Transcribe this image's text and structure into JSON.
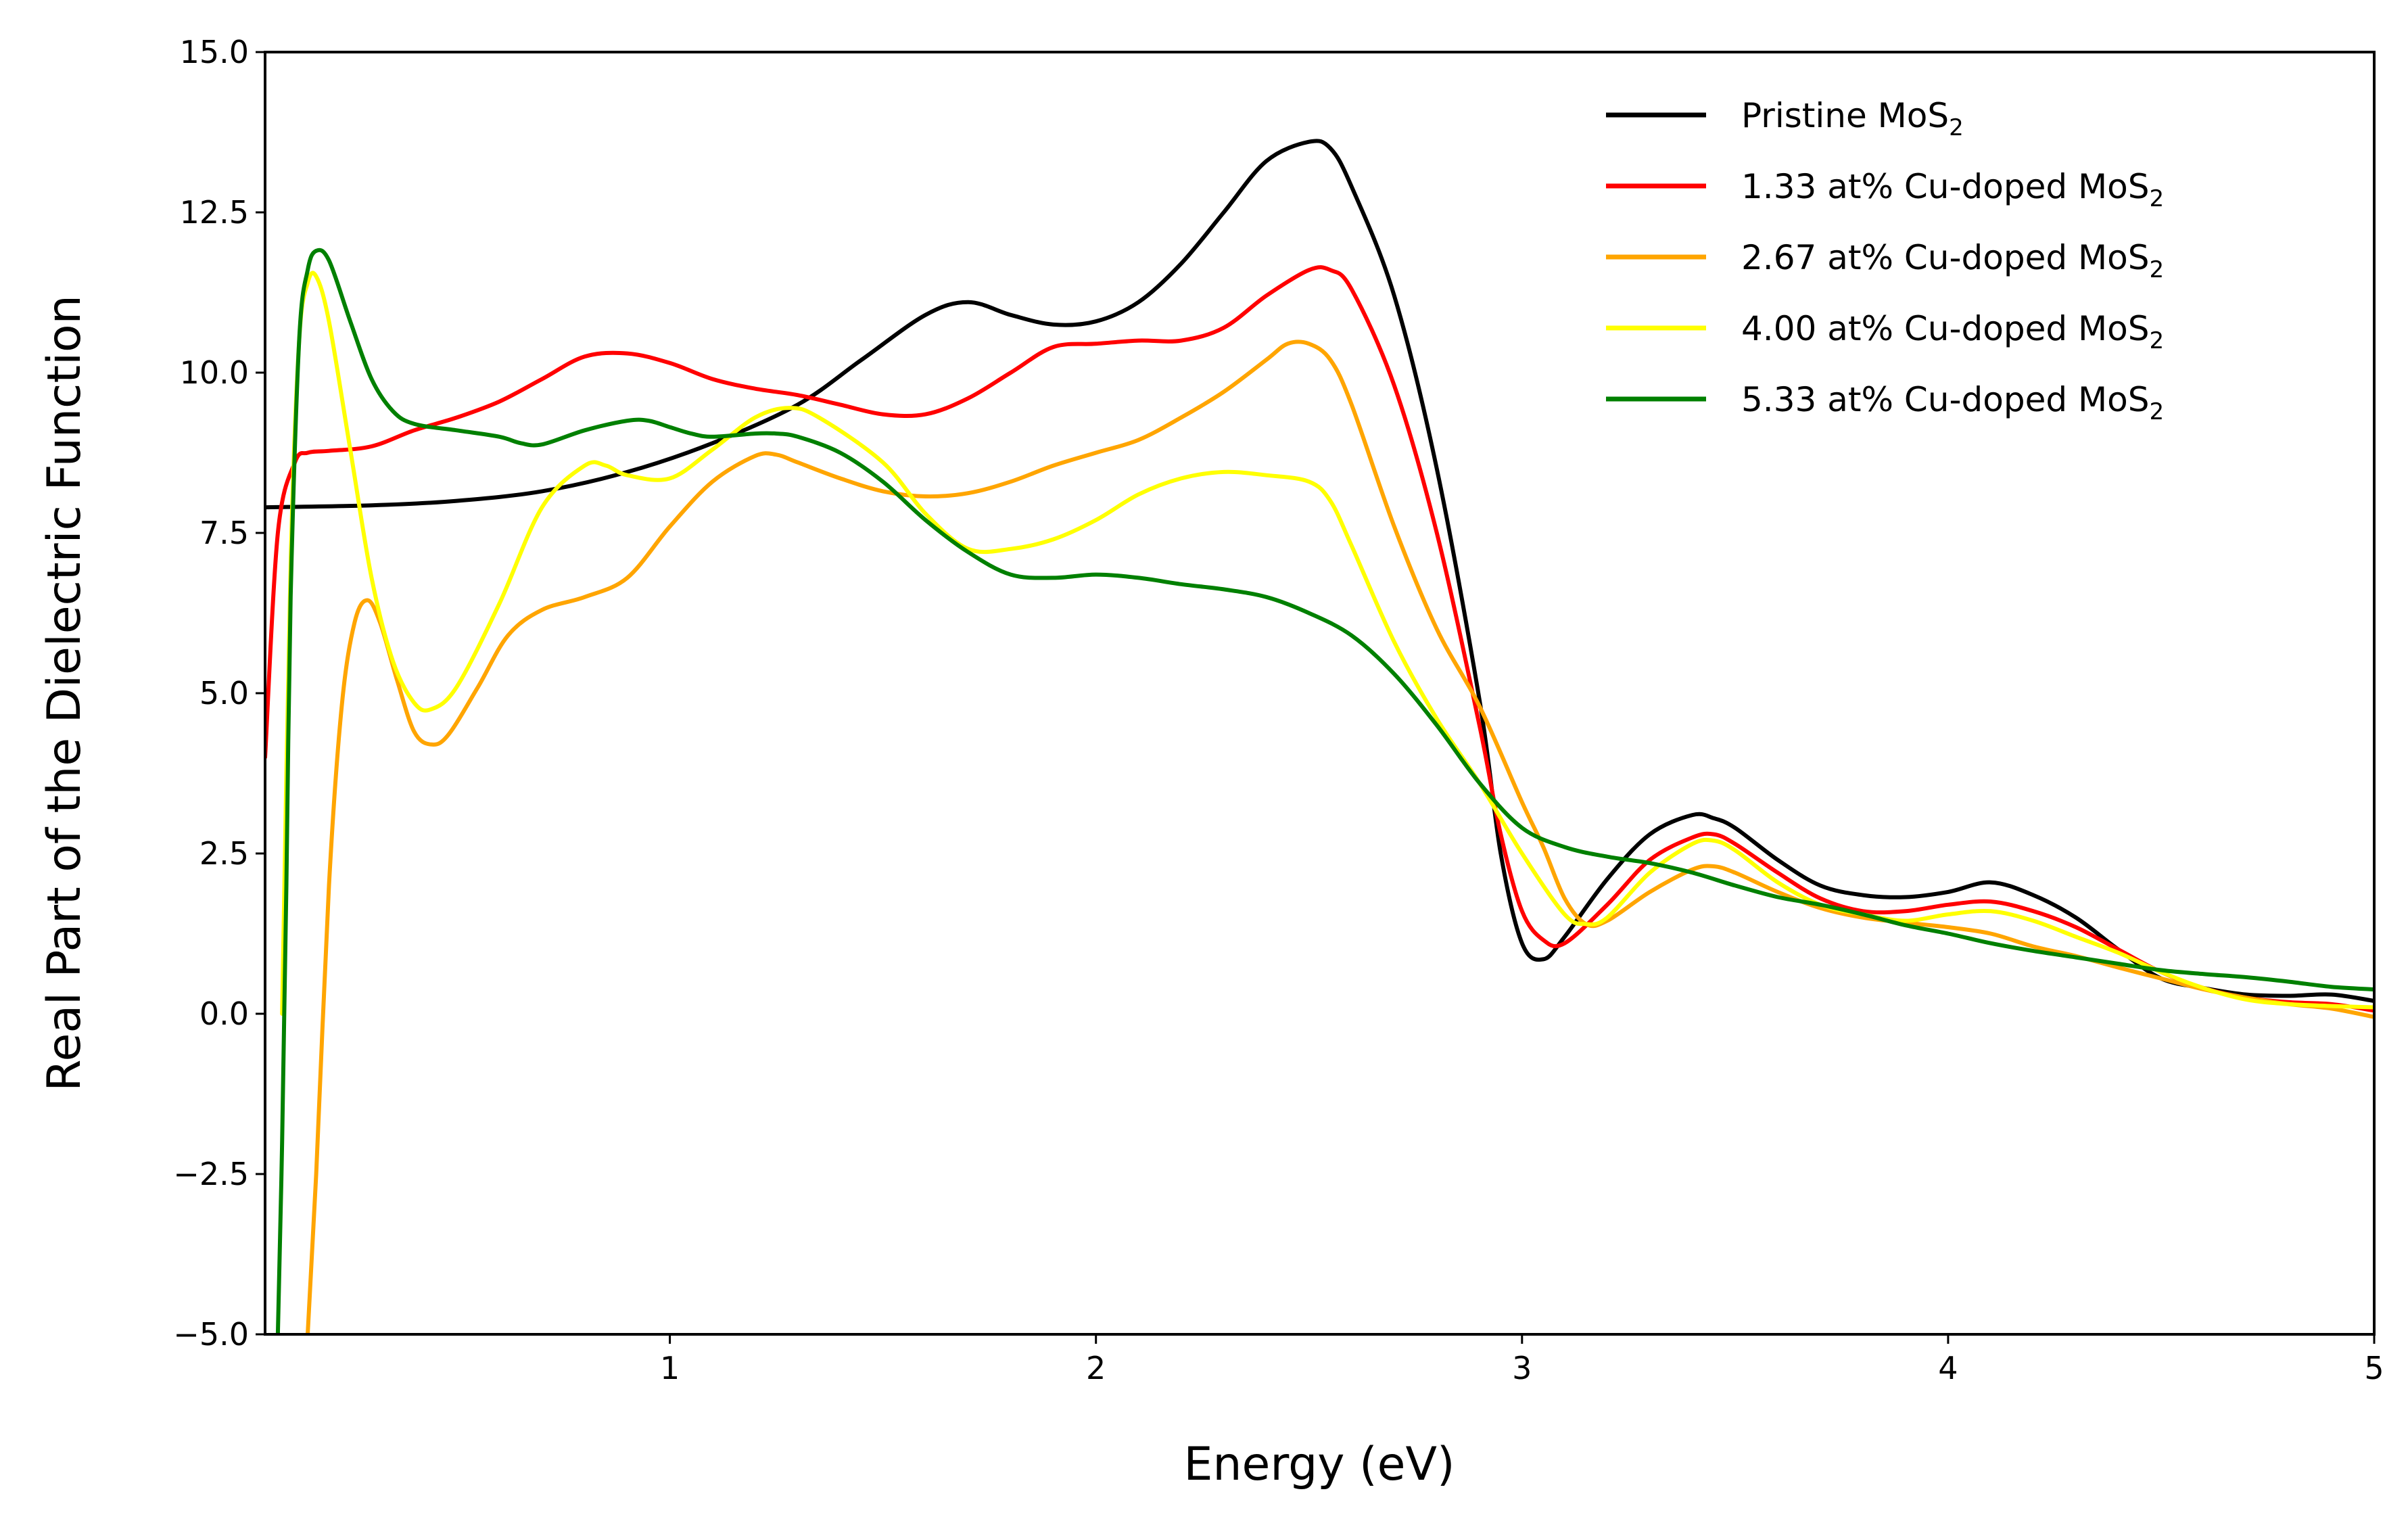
{
  "chart_data": {
    "type": "line",
    "title": "",
    "xlabel": "Energy (eV)",
    "ylabel": "Real Part of the Dielectric Function",
    "xlim": [
      0.05,
      5.0
    ],
    "ylim": [
      -5.0,
      15.0
    ],
    "x_ticks": [
      1,
      2,
      3,
      4,
      5
    ],
    "y_ticks": [
      -5.0,
      -2.5,
      0.0,
      2.5,
      5.0,
      7.5,
      10.0,
      12.5,
      15.0
    ],
    "x_tick_labels": [
      "1",
      "2",
      "3",
      "4",
      "5"
    ],
    "y_tick_labels": [
      "−5.0",
      "−2.5",
      "0.0",
      "2.5",
      "5.0",
      "7.5",
      "10.0",
      "12.5",
      "15.0"
    ],
    "grid": false,
    "legend_position": "top-right",
    "series": [
      {
        "name": "Pristine MoS",
        "name_subscript": "2",
        "color": "#000000",
        "points": [
          [
            0.05,
            7.9
          ],
          [
            0.3,
            7.93
          ],
          [
            0.5,
            8.0
          ],
          [
            0.7,
            8.15
          ],
          [
            0.9,
            8.45
          ],
          [
            1.1,
            8.9
          ],
          [
            1.3,
            9.5
          ],
          [
            1.45,
            10.2
          ],
          [
            1.6,
            10.9
          ],
          [
            1.7,
            11.1
          ],
          [
            1.8,
            10.9
          ],
          [
            1.9,
            10.75
          ],
          [
            2.0,
            10.8
          ],
          [
            2.1,
            11.1
          ],
          [
            2.2,
            11.7
          ],
          [
            2.3,
            12.5
          ],
          [
            2.4,
            13.3
          ],
          [
            2.5,
            13.6
          ],
          [
            2.55,
            13.5
          ],
          [
            2.6,
            12.9
          ],
          [
            2.7,
            11.2
          ],
          [
            2.8,
            8.5
          ],
          [
            2.9,
            4.9
          ],
          [
            2.95,
            2.5
          ],
          [
            3.0,
            1.1
          ],
          [
            3.05,
            0.85
          ],
          [
            3.1,
            1.2
          ],
          [
            3.2,
            2.1
          ],
          [
            3.3,
            2.8
          ],
          [
            3.4,
            3.1
          ],
          [
            3.45,
            3.05
          ],
          [
            3.5,
            2.9
          ],
          [
            3.6,
            2.4
          ],
          [
            3.7,
            2.0
          ],
          [
            3.8,
            1.85
          ],
          [
            3.9,
            1.82
          ],
          [
            4.0,
            1.9
          ],
          [
            4.1,
            2.05
          ],
          [
            4.2,
            1.85
          ],
          [
            4.3,
            1.5
          ],
          [
            4.4,
            1.0
          ],
          [
            4.5,
            0.55
          ],
          [
            4.6,
            0.4
          ],
          [
            4.7,
            0.3
          ],
          [
            4.8,
            0.28
          ],
          [
            4.9,
            0.3
          ],
          [
            5.0,
            0.2
          ]
        ]
      },
      {
        "name": "1.33 at% Cu-doped MoS",
        "name_subscript": "2",
        "color": "#ff0000",
        "points": [
          [
            0.05,
            4.0
          ],
          [
            0.08,
            7.5
          ],
          [
            0.12,
            8.6
          ],
          [
            0.15,
            8.75
          ],
          [
            0.2,
            8.78
          ],
          [
            0.3,
            8.85
          ],
          [
            0.4,
            9.1
          ],
          [
            0.5,
            9.3
          ],
          [
            0.6,
            9.55
          ],
          [
            0.7,
            9.9
          ],
          [
            0.8,
            10.25
          ],
          [
            0.9,
            10.3
          ],
          [
            1.0,
            10.15
          ],
          [
            1.1,
            9.9
          ],
          [
            1.2,
            9.75
          ],
          [
            1.3,
            9.65
          ],
          [
            1.4,
            9.5
          ],
          [
            1.5,
            9.35
          ],
          [
            1.6,
            9.35
          ],
          [
            1.7,
            9.6
          ],
          [
            1.8,
            10.0
          ],
          [
            1.9,
            10.4
          ],
          [
            2.0,
            10.45
          ],
          [
            2.1,
            10.5
          ],
          [
            2.2,
            10.5
          ],
          [
            2.3,
            10.7
          ],
          [
            2.4,
            11.2
          ],
          [
            2.5,
            11.6
          ],
          [
            2.55,
            11.6
          ],
          [
            2.6,
            11.3
          ],
          [
            2.7,
            9.8
          ],
          [
            2.8,
            7.5
          ],
          [
            2.9,
            4.5
          ],
          [
            2.95,
            2.8
          ],
          [
            3.0,
            1.6
          ],
          [
            3.05,
            1.15
          ],
          [
            3.1,
            1.1
          ],
          [
            3.2,
            1.7
          ],
          [
            3.3,
            2.4
          ],
          [
            3.4,
            2.75
          ],
          [
            3.45,
            2.8
          ],
          [
            3.5,
            2.65
          ],
          [
            3.6,
            2.2
          ],
          [
            3.7,
            1.8
          ],
          [
            3.8,
            1.6
          ],
          [
            3.9,
            1.6
          ],
          [
            4.0,
            1.7
          ],
          [
            4.1,
            1.75
          ],
          [
            4.2,
            1.6
          ],
          [
            4.3,
            1.35
          ],
          [
            4.4,
            1.0
          ],
          [
            4.5,
            0.65
          ],
          [
            4.6,
            0.4
          ],
          [
            4.7,
            0.25
          ],
          [
            4.8,
            0.18
          ],
          [
            4.9,
            0.15
          ],
          [
            5.0,
            0.05
          ]
        ]
      },
      {
        "name": "2.67 at% Cu-doped MoS",
        "name_subscript": "2",
        "color": "#ffa500",
        "points": [
          [
            0.15,
            -5.0
          ],
          [
            0.17,
            -2.5
          ],
          [
            0.2,
            2.0
          ],
          [
            0.23,
            4.8
          ],
          [
            0.26,
            6.1
          ],
          [
            0.29,
            6.45
          ],
          [
            0.32,
            6.1
          ],
          [
            0.36,
            5.2
          ],
          [
            0.4,
            4.4
          ],
          [
            0.44,
            4.2
          ],
          [
            0.48,
            4.35
          ],
          [
            0.55,
            5.1
          ],
          [
            0.62,
            5.9
          ],
          [
            0.7,
            6.3
          ],
          [
            0.8,
            6.5
          ],
          [
            0.9,
            6.8
          ],
          [
            1.0,
            7.6
          ],
          [
            1.1,
            8.3
          ],
          [
            1.2,
            8.7
          ],
          [
            1.25,
            8.72
          ],
          [
            1.3,
            8.6
          ],
          [
            1.4,
            8.35
          ],
          [
            1.5,
            8.15
          ],
          [
            1.6,
            8.07
          ],
          [
            1.7,
            8.12
          ],
          [
            1.8,
            8.3
          ],
          [
            1.9,
            8.55
          ],
          [
            2.0,
            8.75
          ],
          [
            2.1,
            8.95
          ],
          [
            2.2,
            9.3
          ],
          [
            2.3,
            9.7
          ],
          [
            2.4,
            10.2
          ],
          [
            2.45,
            10.45
          ],
          [
            2.5,
            10.45
          ],
          [
            2.55,
            10.2
          ],
          [
            2.6,
            9.5
          ],
          [
            2.7,
            7.6
          ],
          [
            2.8,
            6.0
          ],
          [
            2.9,
            4.8
          ],
          [
            3.0,
            3.3
          ],
          [
            3.05,
            2.6
          ],
          [
            3.1,
            1.8
          ],
          [
            3.15,
            1.4
          ],
          [
            3.2,
            1.45
          ],
          [
            3.3,
            1.9
          ],
          [
            3.4,
            2.25
          ],
          [
            3.45,
            2.3
          ],
          [
            3.5,
            2.2
          ],
          [
            3.6,
            1.9
          ],
          [
            3.7,
            1.65
          ],
          [
            3.8,
            1.5
          ],
          [
            3.9,
            1.42
          ],
          [
            4.0,
            1.35
          ],
          [
            4.1,
            1.25
          ],
          [
            4.2,
            1.05
          ],
          [
            4.3,
            0.9
          ],
          [
            4.4,
            0.72
          ],
          [
            4.5,
            0.55
          ],
          [
            4.6,
            0.38
          ],
          [
            4.7,
            0.25
          ],
          [
            4.8,
            0.15
          ],
          [
            4.9,
            0.08
          ],
          [
            5.0,
            -0.05
          ]
        ]
      },
      {
        "name": "4.00 at% Cu-doped MoS",
        "name_subscript": "2",
        "color": "#ffff00",
        "points": [
          [
            0.09,
            0.0
          ],
          [
            0.11,
            7.0
          ],
          [
            0.13,
            10.5
          ],
          [
            0.15,
            11.4
          ],
          [
            0.17,
            11.5
          ],
          [
            0.2,
            10.8
          ],
          [
            0.25,
            8.8
          ],
          [
            0.3,
            6.8
          ],
          [
            0.35,
            5.5
          ],
          [
            0.4,
            4.85
          ],
          [
            0.44,
            4.75
          ],
          [
            0.5,
            5.1
          ],
          [
            0.6,
            6.4
          ],
          [
            0.7,
            7.9
          ],
          [
            0.8,
            8.55
          ],
          [
            0.85,
            8.55
          ],
          [
            0.9,
            8.4
          ],
          [
            1.0,
            8.35
          ],
          [
            1.1,
            8.8
          ],
          [
            1.2,
            9.3
          ],
          [
            1.28,
            9.45
          ],
          [
            1.35,
            9.3
          ],
          [
            1.5,
            8.6
          ],
          [
            1.6,
            7.8
          ],
          [
            1.7,
            7.25
          ],
          [
            1.8,
            7.25
          ],
          [
            1.9,
            7.4
          ],
          [
            2.0,
            7.7
          ],
          [
            2.1,
            8.1
          ],
          [
            2.2,
            8.35
          ],
          [
            2.3,
            8.45
          ],
          [
            2.4,
            8.4
          ],
          [
            2.5,
            8.3
          ],
          [
            2.55,
            8.0
          ],
          [
            2.6,
            7.3
          ],
          [
            2.7,
            5.8
          ],
          [
            2.8,
            4.6
          ],
          [
            2.9,
            3.6
          ],
          [
            3.0,
            2.5
          ],
          [
            3.1,
            1.55
          ],
          [
            3.15,
            1.4
          ],
          [
            3.2,
            1.5
          ],
          [
            3.3,
            2.2
          ],
          [
            3.4,
            2.65
          ],
          [
            3.45,
            2.7
          ],
          [
            3.5,
            2.55
          ],
          [
            3.6,
            2.05
          ],
          [
            3.7,
            1.7
          ],
          [
            3.8,
            1.55
          ],
          [
            3.9,
            1.45
          ],
          [
            4.0,
            1.55
          ],
          [
            4.1,
            1.6
          ],
          [
            4.2,
            1.45
          ],
          [
            4.3,
            1.2
          ],
          [
            4.4,
            0.95
          ],
          [
            4.5,
            0.65
          ],
          [
            4.6,
            0.4
          ],
          [
            4.7,
            0.22
          ],
          [
            4.8,
            0.15
          ],
          [
            4.9,
            0.12
          ],
          [
            5.0,
            0.1
          ]
        ]
      },
      {
        "name": "5.33 at% Cu-doped MoS",
        "name_subscript": "2",
        "color": "#008000",
        "points": [
          [
            0.08,
            -5.0
          ],
          [
            0.09,
            -2.0
          ],
          [
            0.1,
            2.0
          ],
          [
            0.11,
            6.5
          ],
          [
            0.13,
            10.5
          ],
          [
            0.15,
            11.6
          ],
          [
            0.17,
            11.9
          ],
          [
            0.2,
            11.75
          ],
          [
            0.25,
            10.8
          ],
          [
            0.3,
            9.9
          ],
          [
            0.35,
            9.4
          ],
          [
            0.4,
            9.2
          ],
          [
            0.5,
            9.1
          ],
          [
            0.6,
            9.0
          ],
          [
            0.65,
            8.9
          ],
          [
            0.7,
            8.88
          ],
          [
            0.8,
            9.1
          ],
          [
            0.9,
            9.25
          ],
          [
            0.95,
            9.25
          ],
          [
            1.0,
            9.15
          ],
          [
            1.05,
            9.05
          ],
          [
            1.1,
            9.0
          ],
          [
            1.2,
            9.05
          ],
          [
            1.25,
            9.05
          ],
          [
            1.3,
            9.0
          ],
          [
            1.4,
            8.75
          ],
          [
            1.5,
            8.3
          ],
          [
            1.6,
            7.7
          ],
          [
            1.7,
            7.2
          ],
          [
            1.8,
            6.85
          ],
          [
            1.9,
            6.8
          ],
          [
            2.0,
            6.85
          ],
          [
            2.1,
            6.8
          ],
          [
            2.2,
            6.7
          ],
          [
            2.3,
            6.62
          ],
          [
            2.4,
            6.5
          ],
          [
            2.5,
            6.25
          ],
          [
            2.6,
            5.9
          ],
          [
            2.7,
            5.3
          ],
          [
            2.8,
            4.5
          ],
          [
            2.9,
            3.6
          ],
          [
            3.0,
            2.9
          ],
          [
            3.1,
            2.6
          ],
          [
            3.2,
            2.45
          ],
          [
            3.3,
            2.35
          ],
          [
            3.4,
            2.2
          ],
          [
            3.5,
            2.0
          ],
          [
            3.6,
            1.82
          ],
          [
            3.7,
            1.7
          ],
          [
            3.8,
            1.55
          ],
          [
            3.9,
            1.38
          ],
          [
            4.0,
            1.25
          ],
          [
            4.1,
            1.1
          ],
          [
            4.2,
            0.98
          ],
          [
            4.3,
            0.88
          ],
          [
            4.4,
            0.78
          ],
          [
            4.5,
            0.68
          ],
          [
            4.6,
            0.62
          ],
          [
            4.7,
            0.57
          ],
          [
            4.8,
            0.5
          ],
          [
            4.9,
            0.42
          ],
          [
            5.0,
            0.38
          ]
        ]
      }
    ]
  }
}
